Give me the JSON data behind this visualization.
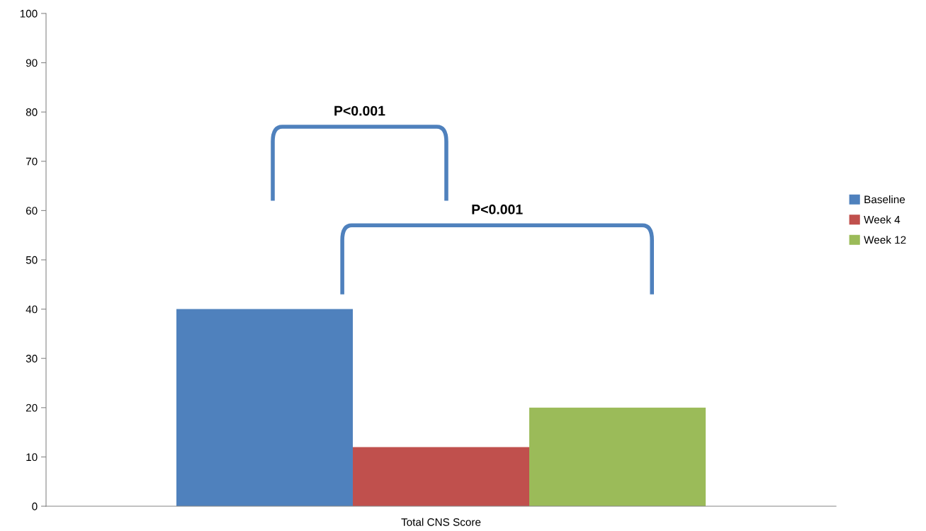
{
  "chart_data": {
    "type": "bar",
    "xlabel": "Total CNS Score",
    "categories": [
      null
    ],
    "series": [
      {
        "name": "Baseline",
        "color": "#4f81bd",
        "values": [
          40
        ]
      },
      {
        "name": "Week 4",
        "color": "#c0504d",
        "values": [
          12
        ]
      },
      {
        "name": "Week 12",
        "color": "#9bbb59",
        "values": [
          20
        ]
      }
    ],
    "ylim": [
      0,
      100
    ],
    "yticks": [
      0,
      10,
      20,
      30,
      40,
      50,
      60,
      70,
      80,
      90,
      100
    ],
    "grid": false,
    "legend": "right",
    "annotations": [
      "P<0.001",
      "P<0.001"
    ]
  }
}
